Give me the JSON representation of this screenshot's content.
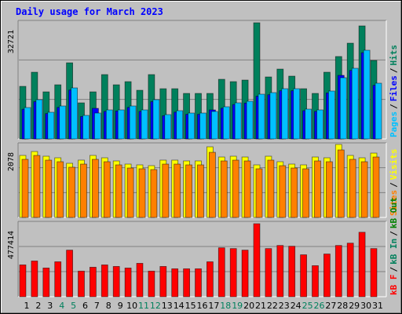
{
  "chart_data": [
    {
      "type": "bar",
      "title": "Daily usage for March 2023",
      "ylim": [
        0,
        32721
      ],
      "yticks": [
        32721
      ],
      "legend_separator": "/",
      "series": [
        {
          "name": "Pages",
          "color": "#00c0ff",
          "values": [
            8668,
            10835,
            7368,
            9101,
            14086,
            6501,
            7151,
            8018,
            8018,
            9101,
            8018,
            10835,
            6718,
            7801,
            7151,
            7151,
            7585,
            8885,
            9968,
            10402,
            12352,
            12785,
            13869,
            13869,
            8235,
            8018,
            13219,
            16903,
            19503,
            24487,
            15386
          ]
        },
        {
          "name": "Files",
          "color": "#0000ff",
          "values": [
            8200,
            10300,
            7000,
            8700,
            13500,
            6200,
            8451,
            7600,
            7700,
            8700,
            7600,
            10300,
            6400,
            7400,
            6800,
            6800,
            8018,
            8500,
            9500,
            9900,
            11800,
            12200,
            13300,
            13300,
            7800,
            7600,
            12700,
            17553,
            18900,
            23800,
            14800
          ]
        },
        {
          "name": "Hits",
          "color": "#00805c",
          "values": [
            14519,
            18420,
            13002,
            14952,
            21020,
            9968,
            13002,
            17769,
            14952,
            15819,
            13435,
            17769,
            13869,
            13869,
            12569,
            12569,
            12569,
            16469,
            15819,
            16253,
            32072,
            17119,
            19286,
            17336,
            13869,
            12569,
            18420,
            22754,
            26437,
            31205,
            21670
          ]
        }
      ]
    },
    {
      "type": "bar",
      "ylim": [
        0,
        2078
      ],
      "yticks": [
        2078
      ],
      "legend_separator": "/",
      "series": [
        {
          "name": "Sites",
          "color": "#ff8000",
          "values": [
            1619,
            1728,
            1597,
            1553,
            1400,
            1487,
            1619,
            1553,
            1465,
            1378,
            1356,
            1334,
            1487,
            1487,
            1465,
            1465,
            1815,
            1575,
            1597,
            1575,
            1356,
            1597,
            1443,
            1378,
            1356,
            1575,
            1553,
            1881,
            1619,
            1553,
            1684
          ]
        },
        {
          "name": "Visits",
          "color": "#ffff00",
          "values": [
            1728,
            1837,
            1706,
            1662,
            1509,
            1597,
            1728,
            1662,
            1575,
            1487,
            1465,
            1443,
            1597,
            1597,
            1575,
            1575,
            1968,
            1684,
            1706,
            1684,
            1465,
            1706,
            1553,
            1487,
            1465,
            1684,
            1662,
            2034,
            1728,
            1662,
            1793
          ]
        }
      ]
    },
    {
      "type": "bar",
      "ylim": [
        0,
        477414
      ],
      "yticks": [
        477414
      ],
      "legend_separator": "/",
      "categories": [
        "1",
        "2",
        "3",
        "4",
        "5",
        "6",
        "7",
        "8",
        "9",
        "10",
        "11",
        "12",
        "13",
        "14",
        "15",
        "16",
        "17",
        "18",
        "19",
        "20",
        "21",
        "22",
        "23",
        "24",
        "25",
        "26",
        "27",
        "28",
        "29",
        "30",
        "31"
      ],
      "category_colors": [
        "#000000",
        "#000000",
        "#000000",
        "#00805c",
        "#00805c",
        "#000000",
        "#000000",
        "#000000",
        "#000000",
        "#000000",
        "#00805c",
        "#00805c",
        "#000000",
        "#000000",
        "#000000",
        "#000000",
        "#000000",
        "#00805c",
        "#00805c",
        "#000000",
        "#000000",
        "#000000",
        "#000000",
        "#000000",
        "#00805c",
        "#00805c",
        "#000000",
        "#000000",
        "#000000",
        "#000000",
        "#000000"
      ],
      "series": [
        {
          "name": "kB F",
          "color": "#ff0000",
          "values": [
            201802,
            226412,
            182114,
            221490,
            295320,
            162426,
            187036,
            201802,
            191958,
            182114,
            211646,
            162426,
            191958,
            177192,
            177192,
            177192,
            221490,
            310086,
            305164,
            295320,
            462668,
            305164,
            324852,
            319930,
            265788,
            196880,
            270710,
            324852,
            339618,
            408526,
            305164
          ]
        }
      ],
      "extra_legend": [
        {
          "name": "kB In",
          "color": "#00805c"
        },
        {
          "name": "kB Out",
          "color": "#008000"
        }
      ]
    }
  ]
}
